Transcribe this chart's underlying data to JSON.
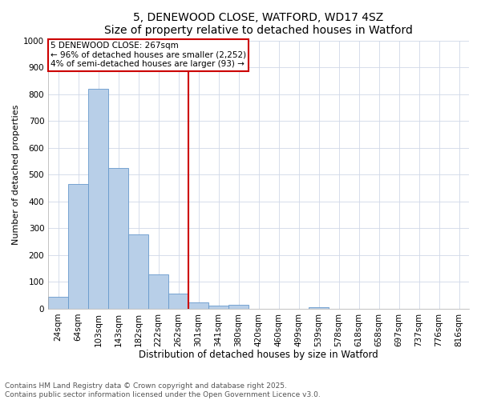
{
  "title": "5, DENEWOOD CLOSE, WATFORD, WD17 4SZ",
  "subtitle": "Size of property relative to detached houses in Watford",
  "xlabel": "Distribution of detached houses by size in Watford",
  "ylabel": "Number of detached properties",
  "footer_line1": "Contains HM Land Registry data © Crown copyright and database right 2025.",
  "footer_line2": "Contains public sector information licensed under the Open Government Licence v3.0.",
  "categories": [
    "24sqm",
    "64sqm",
    "103sqm",
    "143sqm",
    "182sqm",
    "222sqm",
    "262sqm",
    "301sqm",
    "341sqm",
    "380sqm",
    "420sqm",
    "460sqm",
    "499sqm",
    "539sqm",
    "578sqm",
    "618sqm",
    "658sqm",
    "697sqm",
    "737sqm",
    "776sqm",
    "816sqm"
  ],
  "values": [
    45,
    465,
    820,
    525,
    278,
    128,
    55,
    22,
    10,
    13,
    0,
    0,
    0,
    7,
    0,
    0,
    0,
    0,
    0,
    0,
    0
  ],
  "bar_color": "#b8cfe8",
  "bar_edge_color": "#6699cc",
  "vline_color": "#cc0000",
  "vline_x": 6.5,
  "annotation_text": "5 DENEWOOD CLOSE: 267sqm\n← 96% of detached houses are smaller (2,252)\n4% of semi-detached houses are larger (93) →",
  "annotation_box_facecolor": "#ffffff",
  "annotation_box_edgecolor": "#cc0000",
  "annotation_fontsize": 7.5,
  "ylim": [
    0,
    1000
  ],
  "yticks": [
    0,
    100,
    200,
    300,
    400,
    500,
    600,
    700,
    800,
    900,
    1000
  ],
  "title_fontsize": 10,
  "xlabel_fontsize": 8.5,
  "ylabel_fontsize": 8,
  "tick_fontsize": 7.5,
  "footer_fontsize": 6.5,
  "bg_color": "#ffffff",
  "plot_bg_color": "#ffffff",
  "grid_color": "#d0d8e8"
}
